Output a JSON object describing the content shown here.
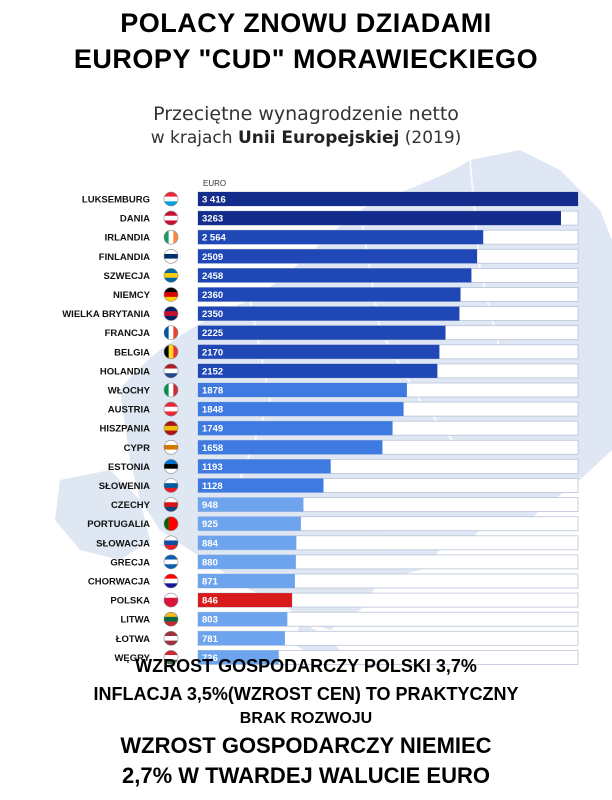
{
  "headline": {
    "line1": "POLACY ZNOWU DZIADAMI",
    "line2": "EUROPY \"CUD\" MORAWIECKIEGO"
  },
  "subtitle": {
    "line1": "Przeciętne wynagrodzenie netto",
    "line2_prefix": "w krajach ",
    "line2_bold": "Unii Europejskiej",
    "line2_suffix": " (2019)"
  },
  "footer": {
    "line1": "WZROST GOSPODARCZY POLSKI 3,7%",
    "line2": "INFLACJA 3,5%(WZROST CEN) TO PRAKTYCZNY",
    "line3": "BRAK ROZWOJU",
    "line4": "WZROST GOSPODARCZY NIEMIEC",
    "line5": "2,7% W TWARDEJ WALUCIE EURO"
  },
  "colors": {
    "dark_blue": "#142c8c",
    "mid_blue": "#1f47b5",
    "light_blue": "#3f7ae0",
    "pale_blue": "#6ea4ee",
    "highlight_red": "#d81b1b"
  },
  "chart_data": {
    "type": "bar",
    "orientation": "horizontal",
    "unit_label": "EURO",
    "xlim": [
      0,
      3416
    ],
    "categories": [
      "LUKSEMBURG",
      "DANIA",
      "IRLANDIA",
      "FINLANDIA",
      "SZWECJA",
      "NIEMCY",
      "WIELKA BRYTANIA",
      "FRANCJA",
      "BELGIA",
      "HOLANDIA",
      "WŁOCHY",
      "AUSTRIA",
      "HISZPANIA",
      "CYPR",
      "ESTONIA",
      "SŁOWENIA",
      "CZECHY",
      "PORTUGALIA",
      "SŁOWACJA",
      "GRECJA",
      "CHORWACJA",
      "POLSKA",
      "LITWA",
      "ŁOTWA",
      "WĘGRY"
    ],
    "values": [
      3416,
      3263,
      2564,
      2509,
      2458,
      2360,
      2350,
      2225,
      2170,
      2152,
      1878,
      1848,
      1749,
      1658,
      1193,
      1128,
      948,
      925,
      884,
      880,
      871,
      846,
      803,
      781,
      726
    ],
    "value_labels": [
      "3 416",
      "3263",
      "2 564",
      "2509",
      "2458",
      "2360",
      "2350",
      "2225",
      "2170",
      "2152",
      "1878",
      "1848",
      "1749",
      "1658",
      "1193",
      "1128",
      "948",
      "925",
      "884",
      "880",
      "871",
      "846",
      "803",
      "781",
      "726"
    ],
    "bar_tiers": [
      "dark",
      "dark",
      "mid",
      "mid",
      "mid",
      "mid",
      "mid",
      "mid",
      "mid",
      "mid",
      "light",
      "light",
      "light",
      "light",
      "light",
      "light",
      "pale",
      "pale",
      "pale",
      "pale",
      "pale",
      "highlight",
      "pale",
      "pale",
      "pale"
    ],
    "flags": [
      "flag-luxembourg-icon",
      "flag-denmark-icon",
      "flag-ireland-icon",
      "flag-finland-icon",
      "flag-sweden-icon",
      "flag-germany-icon",
      "flag-uk-icon",
      "flag-france-icon",
      "flag-belgium-icon",
      "flag-netherlands-icon",
      "flag-italy-icon",
      "flag-austria-icon",
      "flag-spain-icon",
      "flag-cyprus-icon",
      "flag-estonia-icon",
      "flag-slovenia-icon",
      "flag-czechia-icon",
      "flag-portugal-icon",
      "flag-slovakia-icon",
      "flag-greece-icon",
      "flag-croatia-icon",
      "flag-poland-icon",
      "flag-lithuania-icon",
      "flag-latvia-icon",
      "flag-hungary-icon"
    ],
    "grid": false
  }
}
